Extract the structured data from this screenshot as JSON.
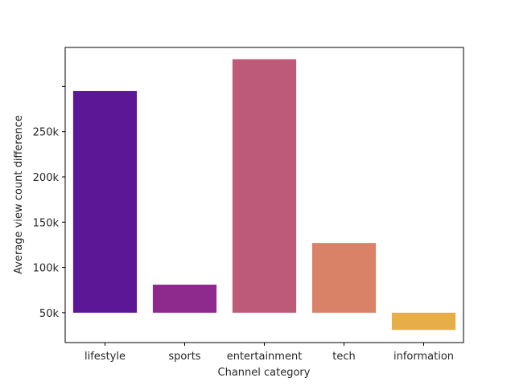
{
  "chart_data": {
    "type": "bar",
    "xlabel": "Channel category",
    "ylabel": "Average view count difference",
    "categories": [
      "lifestyle",
      "sports",
      "entertainment",
      "tech",
      "information"
    ],
    "baseline": 50000,
    "values": [
      295000,
      81000,
      330000,
      127000,
      31000
    ],
    "colors": [
      "#5c1796",
      "#8e2a8e",
      "#bd5a7a",
      "#d98267",
      "#e6ad48"
    ],
    "ylim": [
      17000,
      343000
    ],
    "yticks": [
      {
        "value": 50000,
        "label": "50k"
      },
      {
        "value": 100000,
        "label": "100k"
      },
      {
        "value": 150000,
        "label": "150k"
      },
      {
        "value": 200000,
        "label": "200k"
      },
      {
        "value": 250000,
        "label": "250k"
      },
      {
        "value": 300000,
        "label": ""
      }
    ],
    "grid": false,
    "legend": "none"
  }
}
